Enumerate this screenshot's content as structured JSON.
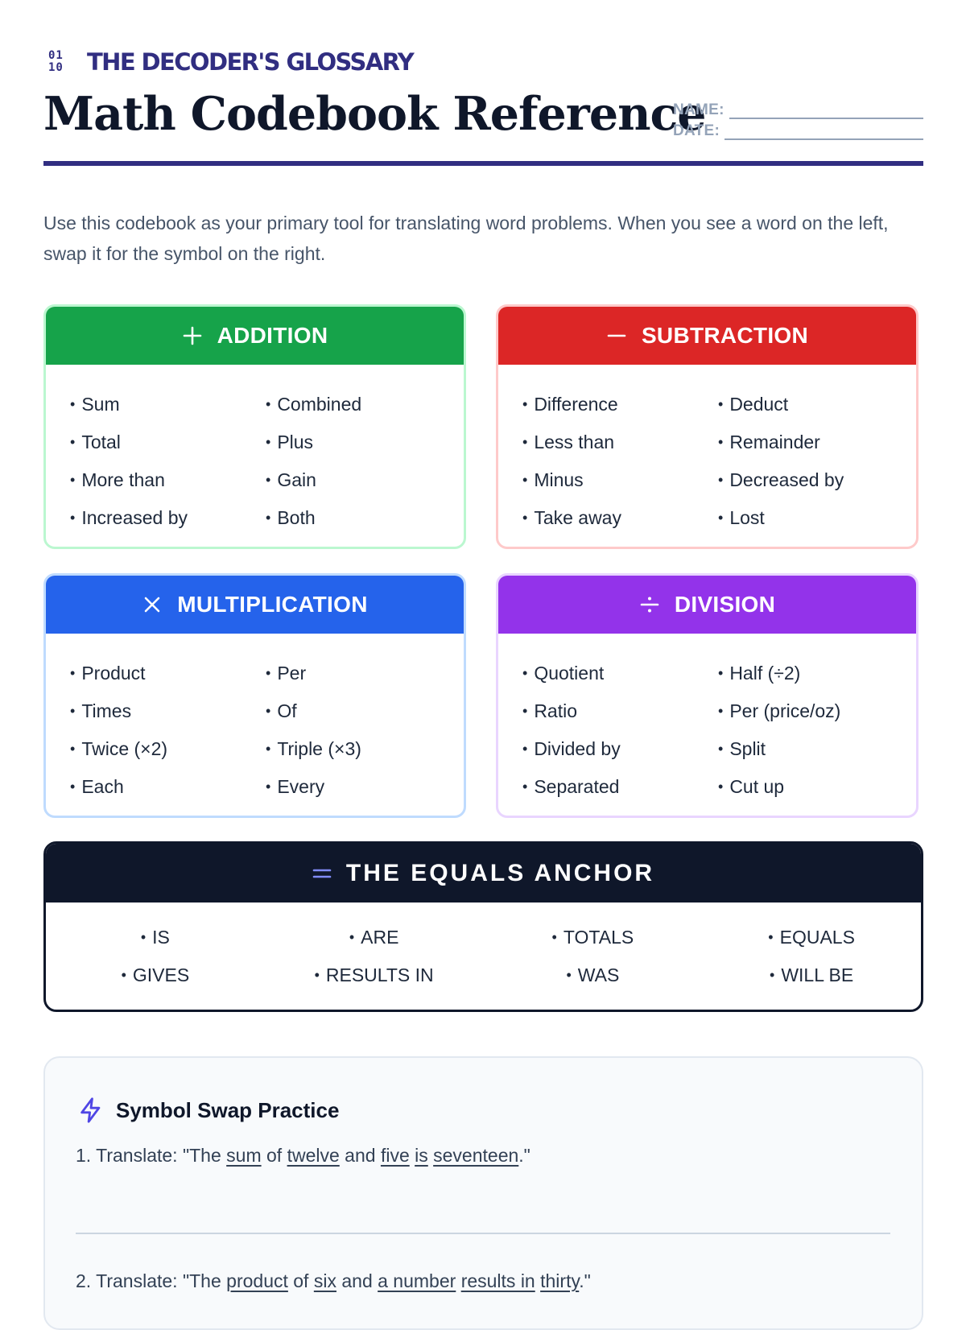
{
  "header": {
    "brand": "THE DECODER'S GLOSSARY",
    "brand_icon_top": "01",
    "brand_icon_bottom": "10",
    "title": "Math Codebook Reference",
    "name_label": "NAME:",
    "date_label": "DATE:"
  },
  "intro": "Use this codebook as your primary tool for translating word problems. When you see a word on the left, swap it for the symbol on the right.",
  "cards": {
    "addition": {
      "title": "ADDITION",
      "icon": "plus-icon",
      "color": "#16a34a",
      "left": [
        "Sum",
        "Total",
        "More than",
        "Increased by"
      ],
      "right": [
        "Combined",
        "Plus",
        "Gain",
        "Both"
      ]
    },
    "subtraction": {
      "title": "SUBTRACTION",
      "icon": "minus-icon",
      "color": "#dc2626",
      "left": [
        "Difference",
        "Less than",
        "Minus",
        "Take away"
      ],
      "right": [
        "Deduct",
        "Remainder",
        "Decreased by",
        "Lost"
      ]
    },
    "multiplication": {
      "title": "MULTIPLICATION",
      "icon": "times-icon",
      "color": "#2563eb",
      "left": [
        "Product",
        "Times",
        "Twice (×2)",
        "Each"
      ],
      "right": [
        "Per",
        "Of",
        "Triple (×3)",
        "Every"
      ]
    },
    "division": {
      "title": "DIVISION",
      "icon": "divide-icon",
      "color": "#9333ea",
      "left": [
        "Quotient",
        "Ratio",
        "Divided by",
        "Separated"
      ],
      "right": [
        "Half (÷2)",
        "Per (price/oz)",
        "Split",
        "Cut up"
      ]
    }
  },
  "equals": {
    "title": "THE EQUALS ANCHOR",
    "icon": "equals-icon",
    "row1": [
      "IS",
      "ARE",
      "TOTALS",
      "EQUALS"
    ],
    "row2": [
      "GIVES",
      "RESULTS IN",
      "WAS",
      "WILL BE"
    ]
  },
  "practice": {
    "title": "Symbol Swap Practice",
    "icon": "lightning-icon",
    "q1": {
      "parts": [
        "1. Translate: \"The ",
        "sum",
        " of ",
        "twelve",
        " and ",
        "five",
        " ",
        "is",
        " ",
        "seventeen",
        ".\""
      ]
    },
    "q2": {
      "parts": [
        "2. Translate: \"The ",
        "product",
        " of ",
        "six",
        " and ",
        "a number",
        " ",
        "results in",
        " ",
        "thirty",
        ".\""
      ]
    }
  }
}
